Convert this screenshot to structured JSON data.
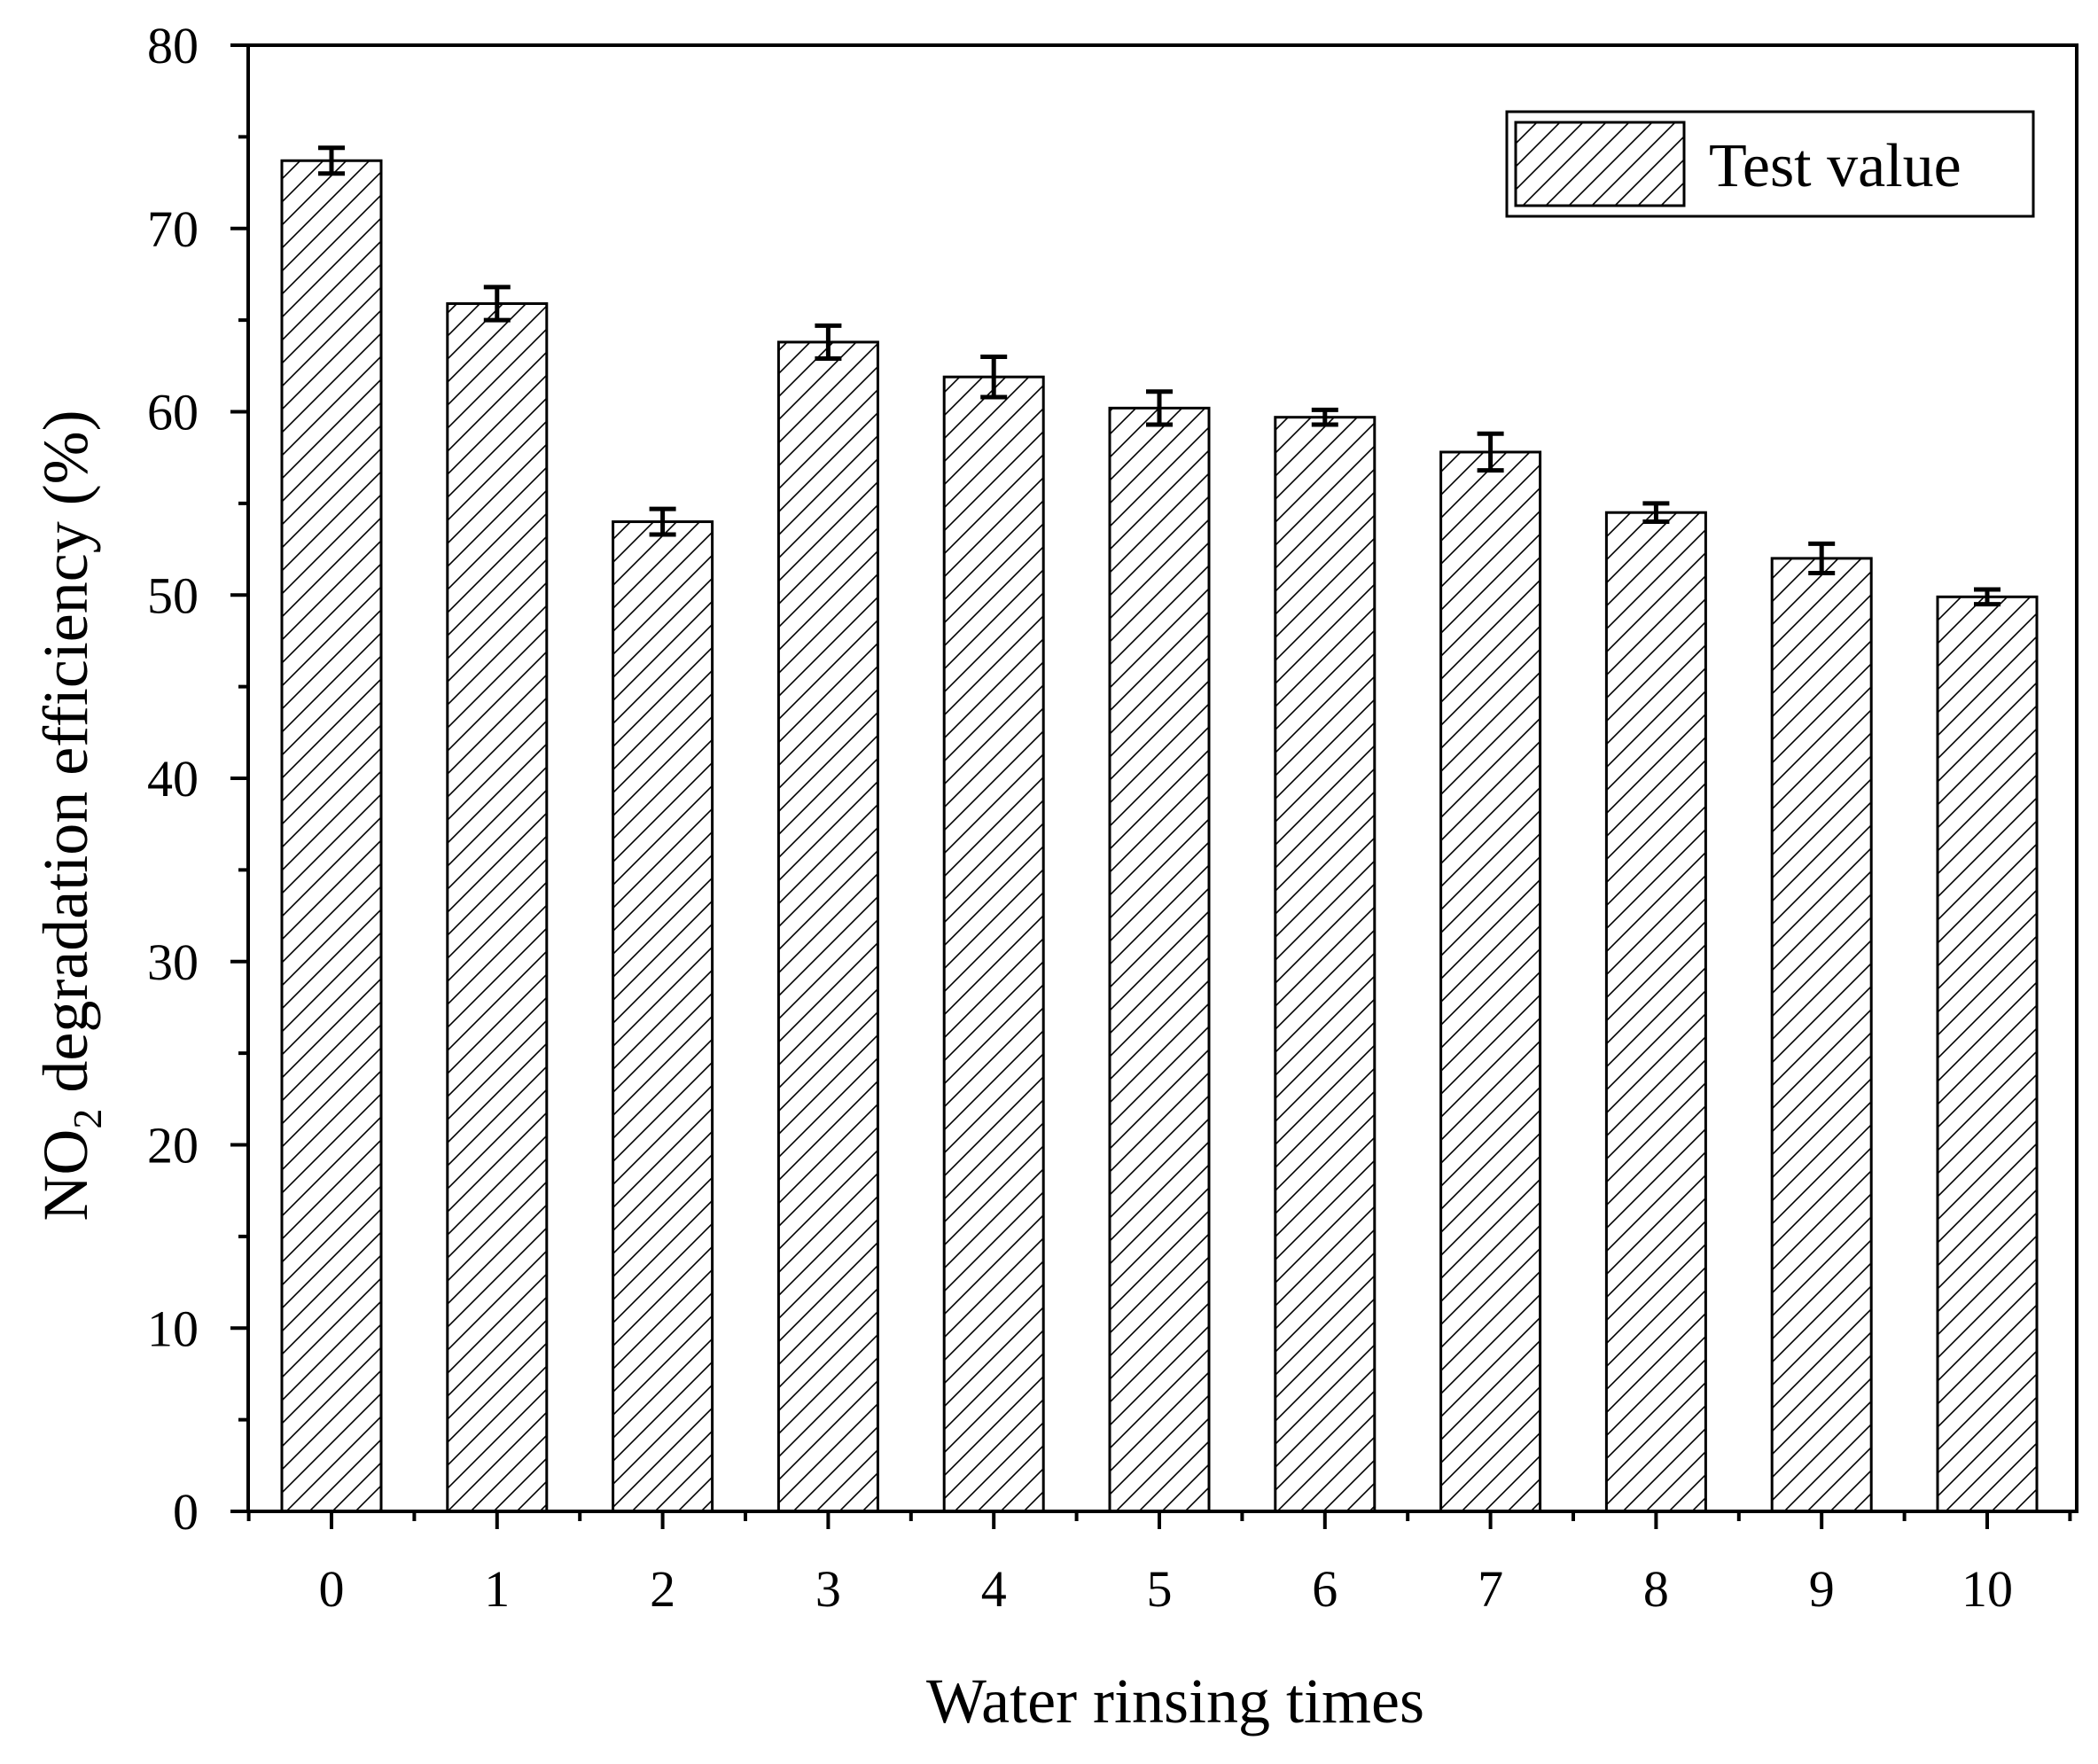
{
  "chart_data": {
    "type": "bar",
    "title": "",
    "xlabel": "Water rinsing times",
    "ylabel_main": "NO",
    "ylabel_sub": "2",
    "ylabel_rest": " degradation efficiency (%)",
    "categories": [
      "0",
      "1",
      "2",
      "3",
      "4",
      "5",
      "6",
      "7",
      "8",
      "9",
      "10"
    ],
    "series": [
      {
        "name": "Test value",
        "values": [
          73.7,
          65.9,
          54.0,
          63.8,
          61.9,
          60.2,
          59.7,
          57.8,
          54.5,
          52.0,
          49.9
        ],
        "errors": [
          0.7,
          0.9,
          0.7,
          0.9,
          1.1,
          0.9,
          0.4,
          1.0,
          0.5,
          0.8,
          0.4
        ]
      }
    ],
    "ylim": [
      0,
      80
    ],
    "yticks": [
      0,
      10,
      20,
      30,
      40,
      50,
      60,
      70,
      80
    ],
    "bar_pattern": "diagonal-hatch",
    "bar_fill": "#ffffff",
    "stroke_color": "#000000",
    "legend_position": "top-right",
    "grid": false
  }
}
